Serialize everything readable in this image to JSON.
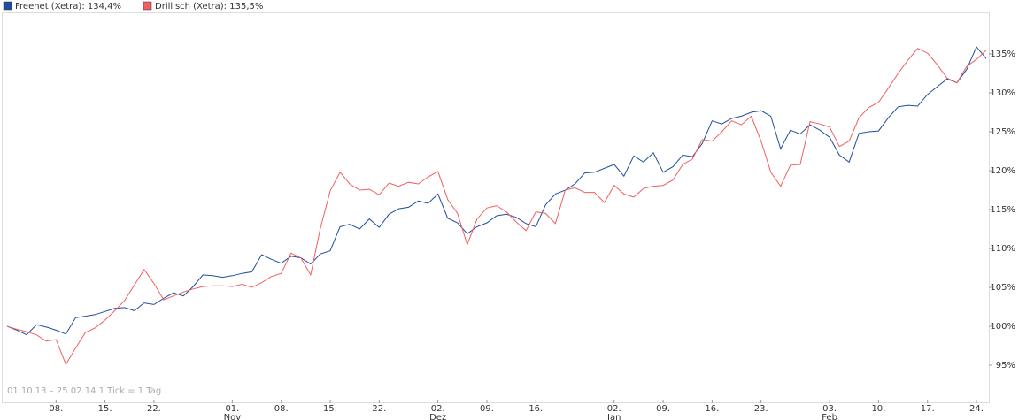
{
  "chart_data": {
    "type": "line",
    "annotation": "01.10.13 – 25.02.14   1 Tick = 1 Tag",
    "categories": [
      null,
      null,
      null,
      null,
      null,
      "08.",
      null,
      null,
      null,
      null,
      "15.",
      null,
      null,
      null,
      null,
      "22.",
      null,
      null,
      null,
      null,
      null,
      null,
      null,
      "01.",
      null,
      null,
      null,
      null,
      "08.",
      null,
      null,
      null,
      null,
      "15.",
      null,
      null,
      null,
      null,
      "22.",
      null,
      null,
      null,
      null,
      null,
      "02.",
      null,
      null,
      null,
      null,
      "09.",
      null,
      null,
      null,
      null,
      "16.",
      null,
      null,
      null,
      null,
      null,
      null,
      null,
      "02.",
      null,
      null,
      null,
      null,
      "09.",
      null,
      null,
      null,
      null,
      "16.",
      null,
      null,
      null,
      null,
      "23.",
      null,
      null,
      null,
      null,
      null,
      null,
      "03.",
      null,
      null,
      null,
      null,
      "10.",
      null,
      null,
      null,
      null,
      "17.",
      null,
      null,
      null,
      null,
      "24.",
      null
    ],
    "x_sublabels": [
      null,
      null,
      null,
      null,
      null,
      null,
      null,
      null,
      null,
      null,
      null,
      null,
      null,
      null,
      null,
      null,
      null,
      null,
      null,
      null,
      null,
      null,
      null,
      "Nov",
      null,
      null,
      null,
      null,
      null,
      null,
      null,
      null,
      null,
      null,
      null,
      null,
      null,
      null,
      null,
      null,
      null,
      null,
      null,
      null,
      "Dez",
      null,
      null,
      null,
      null,
      null,
      null,
      null,
      null,
      null,
      null,
      null,
      null,
      null,
      null,
      null,
      null,
      null,
      "Jan",
      null,
      null,
      null,
      null,
      null,
      null,
      null,
      null,
      null,
      null,
      null,
      null,
      null,
      null,
      null,
      null,
      null,
      null,
      null,
      null,
      null,
      "Feb",
      null,
      null,
      null,
      null,
      null,
      null,
      null,
      null,
      null,
      null,
      null,
      null,
      null,
      null,
      null,
      null
    ],
    "series": [
      {
        "name": "Freenet (Xetra): 134,4%",
        "color": "#1f4e9c",
        "values": [
          100,
          99.5,
          98.9,
          100.2,
          99.9,
          99.5,
          99,
          101.1,
          101.3,
          101.5,
          101.9,
          102.3,
          102.4,
          102,
          103,
          102.8,
          103.6,
          104.3,
          103.9,
          105.1,
          106.6,
          106.5,
          106.3,
          106.5,
          106.8,
          107,
          109.2,
          108.6,
          108.1,
          109,
          108.8,
          108,
          109.3,
          109.7,
          112.8,
          113.1,
          112.5,
          113.8,
          112.7,
          114.4,
          115.1,
          115.3,
          116.1,
          115.8,
          117,
          113.9,
          113.3,
          111.9,
          112.8,
          113.3,
          114.2,
          114.4,
          114,
          113.2,
          112.8,
          115.6,
          117,
          117.5,
          118.3,
          119.7,
          119.8,
          120.3,
          120.8,
          119.3,
          121.9,
          121.1,
          122.3,
          119.8,
          120.5,
          122,
          121.8,
          123.5,
          126.4,
          126,
          126.7,
          127,
          127.5,
          127.7,
          127,
          122.8,
          125.2,
          124.7,
          125.9,
          125.2,
          124.3,
          122,
          121.1,
          124.8,
          125,
          125.1,
          126.8,
          128.2,
          128.4,
          128.3,
          129.8,
          130.8,
          131.8,
          131.3,
          133,
          135.9,
          134.4
        ]
      },
      {
        "name": "Drillisch (Xetra): 135,5%",
        "color": "#f06060",
        "values": [
          100,
          99.6,
          99.3,
          98.9,
          98.1,
          98.3,
          95.1,
          97.2,
          99.2,
          99.8,
          100.8,
          102,
          103.3,
          105.3,
          107.3,
          105.5,
          103.4,
          103.9,
          104.4,
          104.8,
          105.1,
          105.2,
          105.2,
          105.1,
          105.4,
          105,
          105.6,
          106.4,
          106.8,
          109.4,
          108.8,
          106.6,
          112.6,
          117.4,
          119.8,
          118.3,
          117.5,
          117.6,
          116.9,
          118.4,
          118,
          118.5,
          118.3,
          119.2,
          119.9,
          116.3,
          114.5,
          110.5,
          113.8,
          115.2,
          115.5,
          114.7,
          113.4,
          112.3,
          114.7,
          114.5,
          113.2,
          117.5,
          117.8,
          117.2,
          117.2,
          115.9,
          118.1,
          117,
          116.6,
          117.7,
          118,
          118.1,
          118.8,
          120.8,
          121.5,
          124,
          123.8,
          125,
          126.4,
          125.9,
          127,
          123.8,
          119.8,
          118,
          120.7,
          120.8,
          126.3,
          126,
          125.6,
          123.1,
          123.8,
          126.8,
          128.1,
          128.8,
          130.6,
          132.5,
          134.2,
          135.7,
          135.1,
          133.6,
          131.9,
          131.3,
          133.4,
          134.3,
          135.5
        ]
      }
    ],
    "ylim": [
      90,
      140
    ],
    "yticks": [
      {
        "value": 95,
        "label": "95%"
      },
      {
        "value": 100,
        "label": "100%"
      },
      {
        "value": 105,
        "label": "105%"
      },
      {
        "value": 110,
        "label": "110%"
      },
      {
        "value": 115,
        "label": "115%"
      },
      {
        "value": 120,
        "label": "120%"
      },
      {
        "value": 125,
        "label": "125%"
      },
      {
        "value": 130,
        "label": "130%"
      },
      {
        "value": 135,
        "label": "135%"
      }
    ],
    "grid": false
  }
}
